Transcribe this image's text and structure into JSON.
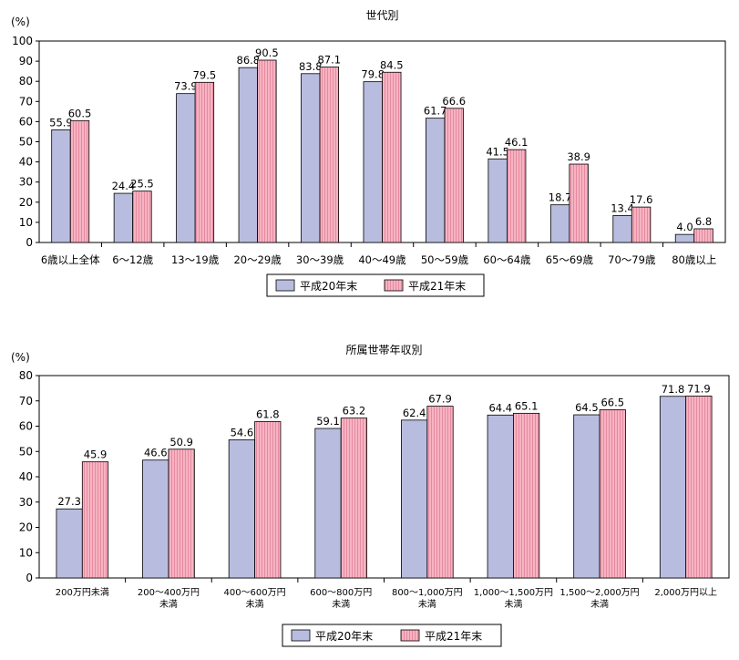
{
  "chart_data": [
    {
      "type": "bar",
      "title": "世代別",
      "ylabel": "(%)",
      "ylim": [
        0,
        100
      ],
      "yticks": [
        0,
        10,
        20,
        30,
        40,
        50,
        60,
        70,
        80,
        90,
        100
      ],
      "categories": [
        "6歳以上全体",
        "6～12歳",
        "13～19歳",
        "20～29歳",
        "30～39歳",
        "40～49歳",
        "50～59歳",
        "60～64歳",
        "65～69歳",
        "70～79歳",
        "80歳以上"
      ],
      "series": [
        {
          "name": "平成20年末",
          "color": "#b8bde0",
          "values": [
            55.9,
            24.4,
            73.9,
            86.8,
            83.8,
            79.8,
            61.7,
            41.5,
            18.7,
            13.4,
            4.0
          ]
        },
        {
          "name": "平成21年末",
          "color": "#f7b3c2",
          "values": [
            60.5,
            25.5,
            79.5,
            90.5,
            87.1,
            84.5,
            66.6,
            46.1,
            38.9,
            17.6,
            6.8
          ]
        }
      ],
      "legend": "bottom-center",
      "grid": false
    },
    {
      "type": "bar",
      "title": "所属世帯年収別",
      "ylabel": "(%)",
      "ylim": [
        0,
        80
      ],
      "yticks": [
        0,
        10,
        20,
        30,
        40,
        50,
        60,
        70,
        80
      ],
      "categories": [
        [
          "200万円未満"
        ],
        [
          "200～400万円",
          "未満"
        ],
        [
          "400～600万円",
          "未満"
        ],
        [
          "600～800万円",
          "未満"
        ],
        [
          "800～1,000万円",
          "未満"
        ],
        [
          "1,000～1,500万円",
          "未満"
        ],
        [
          "1,500～2,000万円",
          "未満"
        ],
        [
          "2,000万円以上"
        ]
      ],
      "series": [
        {
          "name": "平成20年末",
          "color": "#b8bde0",
          "values": [
            27.3,
            46.6,
            54.6,
            59.1,
            62.4,
            64.4,
            64.5,
            71.8
          ]
        },
        {
          "name": "平成21年末",
          "color": "#f7b3c2",
          "values": [
            45.9,
            50.9,
            61.8,
            63.2,
            67.9,
            65.1,
            66.5,
            71.9
          ]
        }
      ],
      "legend": "bottom-center",
      "grid": false
    }
  ]
}
